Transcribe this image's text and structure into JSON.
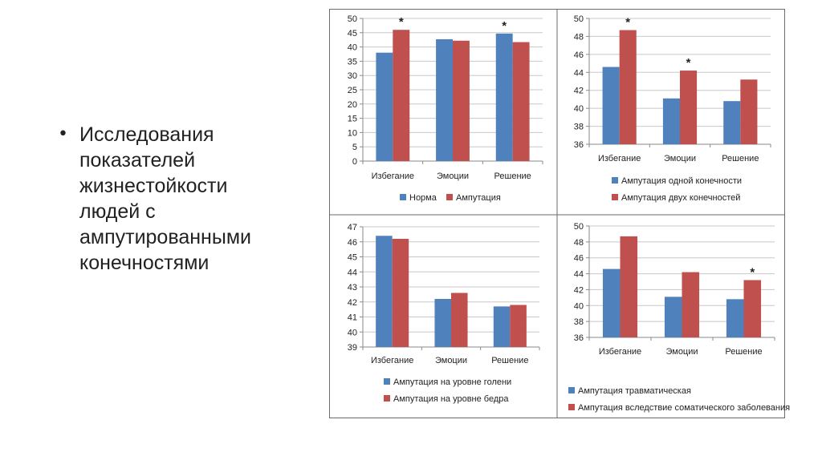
{
  "slide": {
    "bullet_text": "Исследования\nпоказателей\nжизнестойкости\nлюдей с\nампутированными\nконечностями"
  },
  "colors": {
    "blue": "#4f81bd",
    "red": "#c0504d",
    "grid": "#c8c8c8",
    "axis": "#8a8a8a"
  },
  "chart_data": [
    {
      "type": "bar",
      "categories": [
        "Избегание",
        "Эмоции",
        "Решение"
      ],
      "series": [
        {
          "name": "Норма",
          "values": [
            38,
            42.7,
            44.7
          ]
        },
        {
          "name": "Ампутация",
          "values": [
            46,
            42.2,
            41.7
          ]
        }
      ],
      "ylim": [
        0,
        50
      ],
      "yticks": [
        "0",
        "5",
        "10",
        "15",
        "20",
        "25",
        "30",
        "35",
        "40",
        "45",
        "50"
      ],
      "markers": [
        {
          "text": "*",
          "category": 0,
          "series": 1
        },
        {
          "text": "*",
          "category": 2,
          "series": 0
        }
      ],
      "legend": "bottom",
      "grid": true
    },
    {
      "type": "bar",
      "categories": [
        "Избегание",
        "Эмоции",
        "Решение"
      ],
      "series": [
        {
          "name": "Ампутация одной конечности",
          "values": [
            44.6,
            41.1,
            40.8
          ]
        },
        {
          "name": "Ампутация двух конечностей",
          "values": [
            48.7,
            44.2,
            43.2
          ]
        }
      ],
      "ylim": [
        36,
        50
      ],
      "yticks": [
        "36",
        "38",
        "40",
        "42",
        "44",
        "46",
        "48",
        "50"
      ],
      "markers": [
        {
          "text": "*",
          "category": 0,
          "series": 1
        },
        {
          "text": "*",
          "category": 1,
          "series": 1
        }
      ],
      "legend": "bottom",
      "grid": true
    },
    {
      "type": "bar",
      "categories": [
        "Избегание",
        "Эмоции",
        "Решение"
      ],
      "series": [
        {
          "name": "Ампутация на уровне голени",
          "values": [
            46.4,
            42.2,
            41.7
          ]
        },
        {
          "name": "Ампутация на уровне бедра",
          "values": [
            46.2,
            42.6,
            41.8
          ]
        }
      ],
      "ylim": [
        39,
        47
      ],
      "yticks": [
        "39",
        "40",
        "41",
        "42",
        "43",
        "44",
        "45",
        "46",
        "47"
      ],
      "markers": [],
      "legend": "bottom",
      "grid": true
    },
    {
      "type": "bar",
      "categories": [
        "Избегание",
        "Эмоции",
        "Решение"
      ],
      "series": [
        {
          "name": "Ампутация травматическая",
          "values": [
            44.6,
            41.1,
            40.8
          ]
        },
        {
          "name": "Ампутация вследствие соматического заболевания",
          "values": [
            48.7,
            44.2,
            43.2
          ]
        }
      ],
      "ylim": [
        36,
        50
      ],
      "yticks": [
        "36",
        "38",
        "40",
        "42",
        "44",
        "46",
        "48",
        "50"
      ],
      "markers": [
        {
          "text": "*",
          "category": 2,
          "series": 1
        }
      ],
      "legend": "bottom",
      "grid": true
    }
  ]
}
